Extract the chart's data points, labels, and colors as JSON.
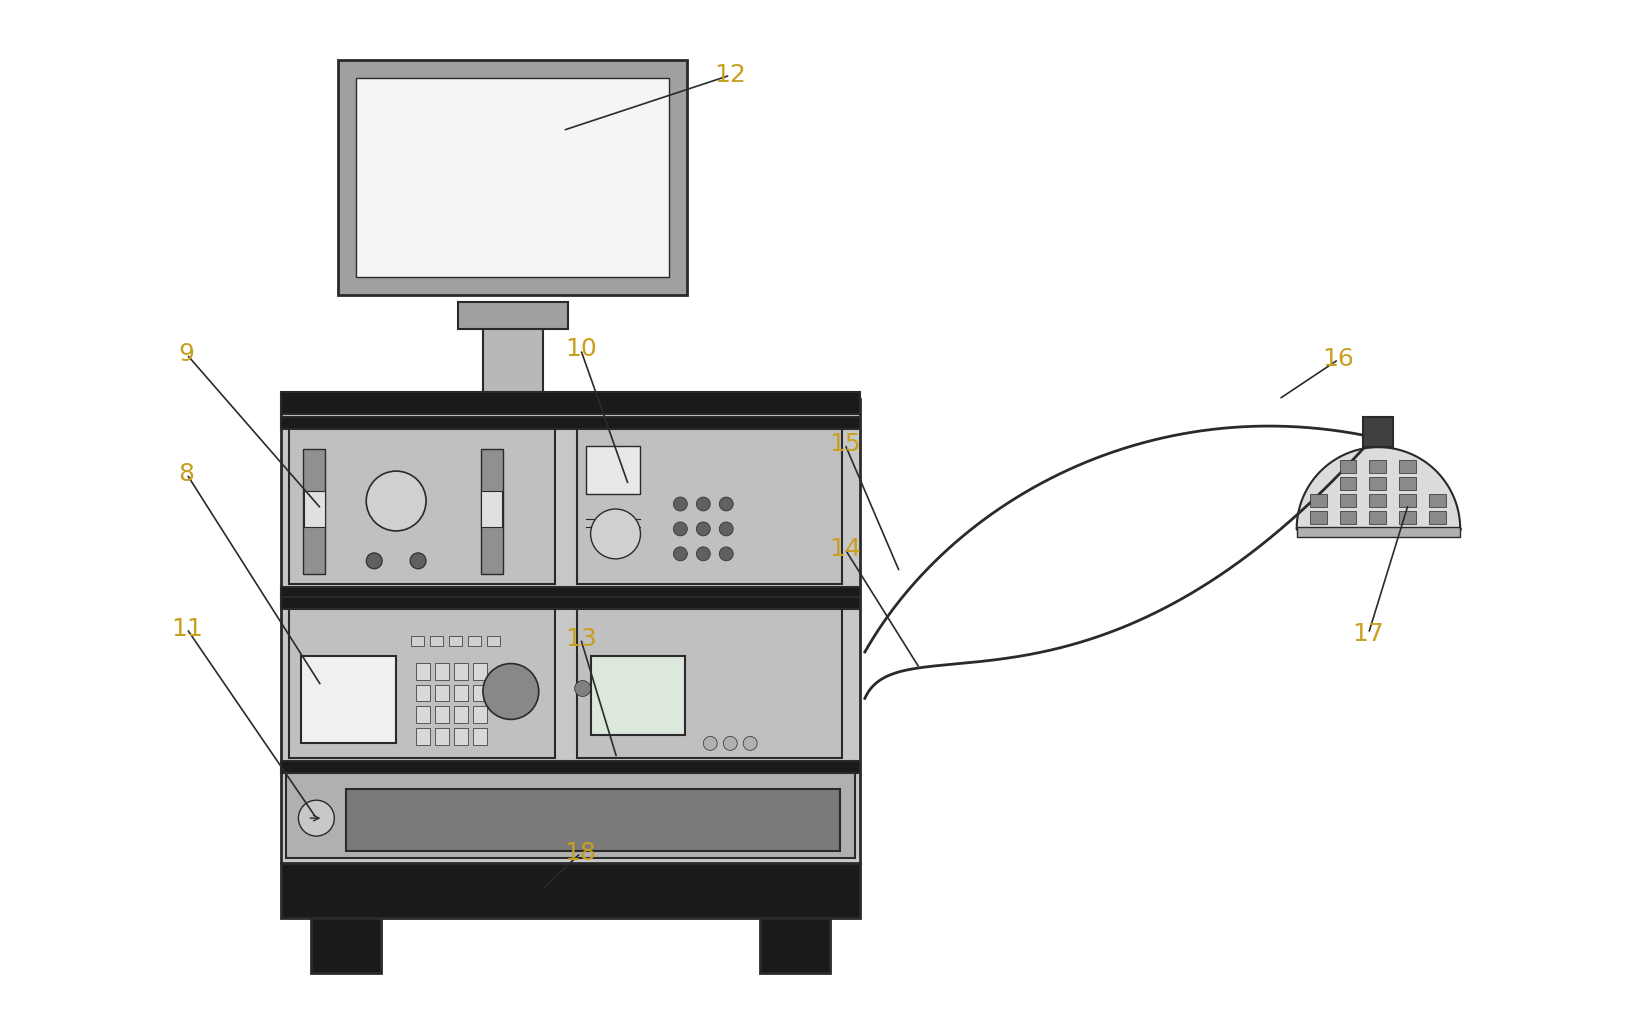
{
  "bg_color": "#ffffff",
  "line_color": "#2a2a2a",
  "fill_light": "#c8c8c8",
  "fill_medium": "#a8a8a8",
  "fill_dark": "#787878",
  "fill_black": "#1a1a1a",
  "fill_white": "#f8f8f8",
  "label_color": "#c8a020",
  "figsize": [
    16.25,
    10.09
  ],
  "dpi": 100
}
